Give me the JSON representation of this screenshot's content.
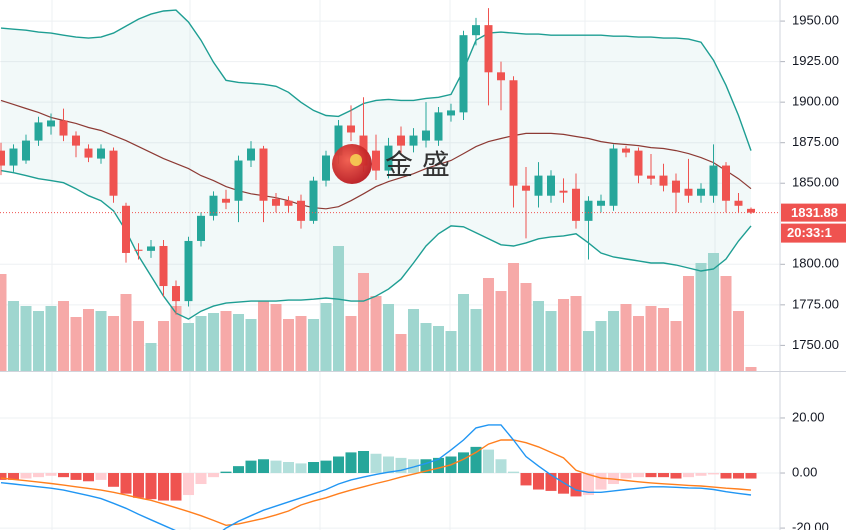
{
  "chart_data": [
    {
      "type": "candlestick",
      "ylim": [
        1734.2,
        1963
      ],
      "yticks": [
        {
          "value": 1950,
          "label": "1950.00"
        },
        {
          "value": 1925,
          "label": "1925.00"
        },
        {
          "value": 1900,
          "label": "1900.00"
        },
        {
          "value": 1875,
          "label": "1875.00"
        },
        {
          "value": 1850,
          "label": "1850.00"
        },
        {
          "value": 1800,
          "label": "1800.00"
        },
        {
          "value": 1775,
          "label": "1775.00"
        },
        {
          "value": 1750,
          "label": "1750.00"
        }
      ],
      "up_color": "#26a69a",
      "down_color": "#ef5350",
      "open": [
        1870.1,
        1860.9,
        1864,
        1876.3,
        1885,
        1888.7,
        1879.4,
        1871.4,
        1865.2,
        1870.1,
        1836.1,
        1809,
        1808.3,
        1811.3,
        1786.6,
        1777.3,
        1814.4,
        1829.9,
        1840.4,
        1839.2,
        1864,
        1871.4,
        1840.4,
        1839.2,
        1839.2,
        1826.8,
        1851.6,
        1867.1,
        1885.6,
        1879.4,
        1870.1,
        1857.8,
        1879.4,
        1873.2,
        1876.3,
        1876.3,
        1891.8,
        1893.7,
        1941.3,
        1947.5,
        1918.4,
        1913.5,
        1848.5,
        1842.3,
        1842.3,
        1845.4,
        1846.6,
        1826.8,
        1836.1,
        1836.1,
        1871.4,
        1870.1,
        1854.7,
        1854.7,
        1851.6,
        1846.6,
        1842.3,
        1842.3,
        1860.9,
        1839.2,
        1834.2
      ],
      "high": [
        1875,
        1874,
        1880,
        1891,
        1893,
        1896,
        1882,
        1874,
        1874,
        1872,
        1838,
        1813,
        1815,
        1815,
        1790,
        1817,
        1832,
        1845,
        1846,
        1867,
        1876,
        1873,
        1844,
        1842,
        1843,
        1854,
        1870,
        1889,
        1898,
        1903,
        1880,
        1878,
        1885,
        1884,
        1900,
        1897,
        1899,
        1944,
        1952,
        1958,
        1925,
        1916,
        1860,
        1863,
        1858,
        1853,
        1856,
        1842,
        1843,
        1874,
        1873,
        1872,
        1868,
        1862,
        1856,
        1865,
        1850,
        1874,
        1863,
        1844,
        1835
      ],
      "low": [
        1855,
        1857,
        1862,
        1873,
        1880,
        1876,
        1866,
        1863,
        1862,
        1838,
        1801,
        1803,
        1804,
        1780,
        1769,
        1774,
        1811,
        1827,
        1834,
        1826,
        1860,
        1826,
        1832,
        1832,
        1822,
        1825,
        1848,
        1862,
        1876,
        1857,
        1852,
        1853,
        1868,
        1869,
        1872,
        1873,
        1888,
        1889,
        1935,
        1898,
        1895,
        1835,
        1816,
        1835,
        1838,
        1838,
        1822,
        1803,
        1832,
        1833,
        1866,
        1850,
        1849,
        1845,
        1832,
        1838,
        1838,
        1838,
        1832,
        1832,
        1831
      ],
      "close": [
        1860.9,
        1871.4,
        1876.3,
        1887.5,
        1888.7,
        1879.4,
        1873.2,
        1865.8,
        1871.4,
        1842.3,
        1807,
        1808.3,
        1811,
        1786.6,
        1777.3,
        1814.4,
        1829.9,
        1842.3,
        1838,
        1864,
        1871.4,
        1839.2,
        1836.1,
        1836.1,
        1826.8,
        1851.6,
        1867.1,
        1885.6,
        1881.3,
        1860.9,
        1857.8,
        1873.2,
        1873.2,
        1879.4,
        1882.5,
        1893.7,
        1894.9,
        1941.3,
        1947.5,
        1918.4,
        1913.5,
        1848.5,
        1845.4,
        1854.7,
        1854.7,
        1844.2,
        1826.8,
        1839.2,
        1839.2,
        1871.4,
        1868.9,
        1854.7,
        1852.8,
        1848.5,
        1844.2,
        1842.3,
        1846.6,
        1860.9,
        1839.2,
        1836.1,
        1831.88
      ],
      "volume": [
        97,
        70,
        65,
        60,
        65,
        70,
        54,
        62,
        60,
        55,
        77,
        50,
        28,
        50,
        65,
        48,
        55,
        58,
        60,
        57,
        52,
        70,
        67,
        52,
        55,
        52,
        68,
        125,
        55,
        98,
        75,
        67,
        37,
        62,
        48,
        45,
        40,
        77,
        62,
        93,
        80,
        108,
        88,
        70,
        60,
        72,
        75,
        40,
        50,
        60,
        67,
        55,
        65,
        63,
        50,
        95,
        108,
        118,
        95,
        60,
        4
      ],
      "bollinger": {
        "color": "#1e9e93",
        "middle_color": "#8d3a34",
        "upper": [
          1945.7,
          1945.0,
          1944.4,
          1943.2,
          1942.6,
          1941.3,
          1940.1,
          1939.5,
          1940.1,
          1942.6,
          1946.9,
          1951.2,
          1954.3,
          1956.2,
          1956.8,
          1949.4,
          1938.2,
          1924.6,
          1913.5,
          1912.2,
          1911.6,
          1911.0,
          1909.8,
          1906.1,
          1899.9,
          1894.9,
          1891.8,
          1891.2,
          1894.9,
          1899.2,
          1901.1,
          1901.7,
          1901.1,
          1901.1,
          1902.3,
          1903.0,
          1904.8,
          1919.7,
          1938.2,
          1942.6,
          1943.2,
          1942.6,
          1942.0,
          1942.0,
          1941.3,
          1941.3,
          1941.3,
          1941.3,
          1941.3,
          1940.7,
          1940.7,
          1940.1,
          1940.1,
          1939.5,
          1939.5,
          1938.9,
          1937.0,
          1925.9,
          1910.4,
          1891.8,
          1870.1
        ],
        "middle": [
          1901.1,
          1898.6,
          1896.1,
          1893.7,
          1890.6,
          1888.7,
          1886.9,
          1884.4,
          1882.5,
          1879.4,
          1876.3,
          1872.6,
          1868.9,
          1865.2,
          1862.1,
          1859.0,
          1854.7,
          1851.6,
          1847.9,
          1845.4,
          1843.5,
          1842.3,
          1841.1,
          1839.2,
          1836.7,
          1834.9,
          1834.2,
          1835.5,
          1839.2,
          1843.5,
          1847.9,
          1851.0,
          1853.4,
          1855.9,
          1859.0,
          1861.5,
          1864.0,
          1868.3,
          1872.6,
          1875.7,
          1877.6,
          1879.4,
          1880.7,
          1880.7,
          1880.7,
          1880.1,
          1878.8,
          1877.6,
          1875.7,
          1874.5,
          1873.9,
          1873.2,
          1872.0,
          1871.4,
          1870.1,
          1868.3,
          1865.8,
          1862.7,
          1857.8,
          1852.8,
          1846.6
        ],
        "lower": [
          1857.8,
          1856.5,
          1854.7,
          1852.8,
          1851.6,
          1850.3,
          1846.6,
          1842.3,
          1839.2,
          1833.0,
          1820.6,
          1805.2,
          1792.8,
          1780.4,
          1769.9,
          1766.2,
          1771.1,
          1774.2,
          1776.1,
          1776.7,
          1777.3,
          1777.3,
          1777.3,
          1777.9,
          1777.9,
          1778.5,
          1779.2,
          1778.5,
          1777.3,
          1777.3,
          1780.4,
          1784.7,
          1790.9,
          1800.8,
          1811.3,
          1818.8,
          1823.7,
          1823.1,
          1819.4,
          1815.7,
          1812.0,
          1811.3,
          1813.2,
          1815.7,
          1816.9,
          1817.5,
          1818.8,
          1813.2,
          1807.0,
          1804.5,
          1803.3,
          1802.1,
          1800.8,
          1800.8,
          1799.6,
          1797.7,
          1795.9,
          1797.1,
          1803.3,
          1814.4,
          1823.7
        ]
      },
      "last_price": 1831.88,
      "countdown": "20:33:1",
      "watermark": "金 盛"
    },
    {
      "type": "macd",
      "ylim": [
        -20.7,
        36.7
      ],
      "yticks": [
        {
          "value": 20,
          "label": "20.00"
        },
        {
          "value": 0,
          "label": "0.00"
        },
        {
          "value": -20,
          "label": "-20.00"
        }
      ],
      "histogram": [
        -2.5,
        -2.5,
        -2,
        -1.5,
        -1,
        -1.5,
        -2.5,
        -3,
        -2.5,
        -5,
        -7.5,
        -9,
        -9.5,
        -10,
        -10,
        -8,
        -4,
        -1.5,
        0.5,
        2.5,
        4.5,
        5,
        4.5,
        4,
        3.5,
        4,
        4.5,
        6,
        7.5,
        8,
        7,
        6,
        5.5,
        5,
        5,
        5.5,
        6,
        7.5,
        9.5,
        8.5,
        5,
        0.5,
        -4.5,
        -6,
        -6.5,
        -7.5,
        -8.5,
        -8,
        -6,
        -4,
        -2,
        -1.5,
        -1.5,
        -1.5,
        -2,
        -1.5,
        -1,
        -0.5,
        -2,
        -2,
        -2
      ],
      "dif": [
        -3.5,
        -4.0,
        -4.5,
        -5.0,
        -5.5,
        -6.2,
        -7.2,
        -8.2,
        -9.3,
        -11,
        -12.8,
        -15,
        -17,
        -19,
        -21,
        -23,
        -24,
        -23.5,
        -20,
        -17.5,
        -15.5,
        -13.5,
        -12,
        -10.5,
        -9,
        -7.5,
        -6,
        -4,
        -2.5,
        -1.5,
        -0.5,
        0.3,
        1,
        2.2,
        3.5,
        5,
        8.4,
        12,
        16.4,
        17.5,
        17.5,
        12,
        6,
        2.5,
        -0.7,
        -3.5,
        -6.2,
        -7,
        -7,
        -6.5,
        -6,
        -5.5,
        -5,
        -5,
        -5.2,
        -5.4,
        -5.5,
        -6,
        -6.8,
        -7.4,
        -8
      ],
      "dea": [
        -1.8,
        -2.3,
        -2.8,
        -3.3,
        -3.8,
        -4.4,
        -5,
        -5.6,
        -6.2,
        -7,
        -8,
        -9,
        -9.9,
        -11.2,
        -12.6,
        -14,
        -15.5,
        -17.2,
        -19,
        -18.5,
        -17.5,
        -16.5,
        -15.2,
        -13.8,
        -11.6,
        -10.2,
        -9,
        -7.5,
        -6.2,
        -5,
        -3.8,
        -2.7,
        -1.5,
        -0.4,
        0.7,
        1.8,
        3,
        5,
        7.5,
        10.5,
        12,
        12,
        11,
        9.5,
        7.5,
        5.5,
        1,
        -0.5,
        -1.8,
        -2.2,
        -2.7,
        -3.2,
        -3.6,
        -3.9,
        -4.2,
        -4.5,
        -4.7,
        -5.1,
        -5.5,
        -5.8,
        -6.2
      ],
      "dif_color": "#2196f3",
      "dea_color": "#ff7f1e"
    }
  ]
}
